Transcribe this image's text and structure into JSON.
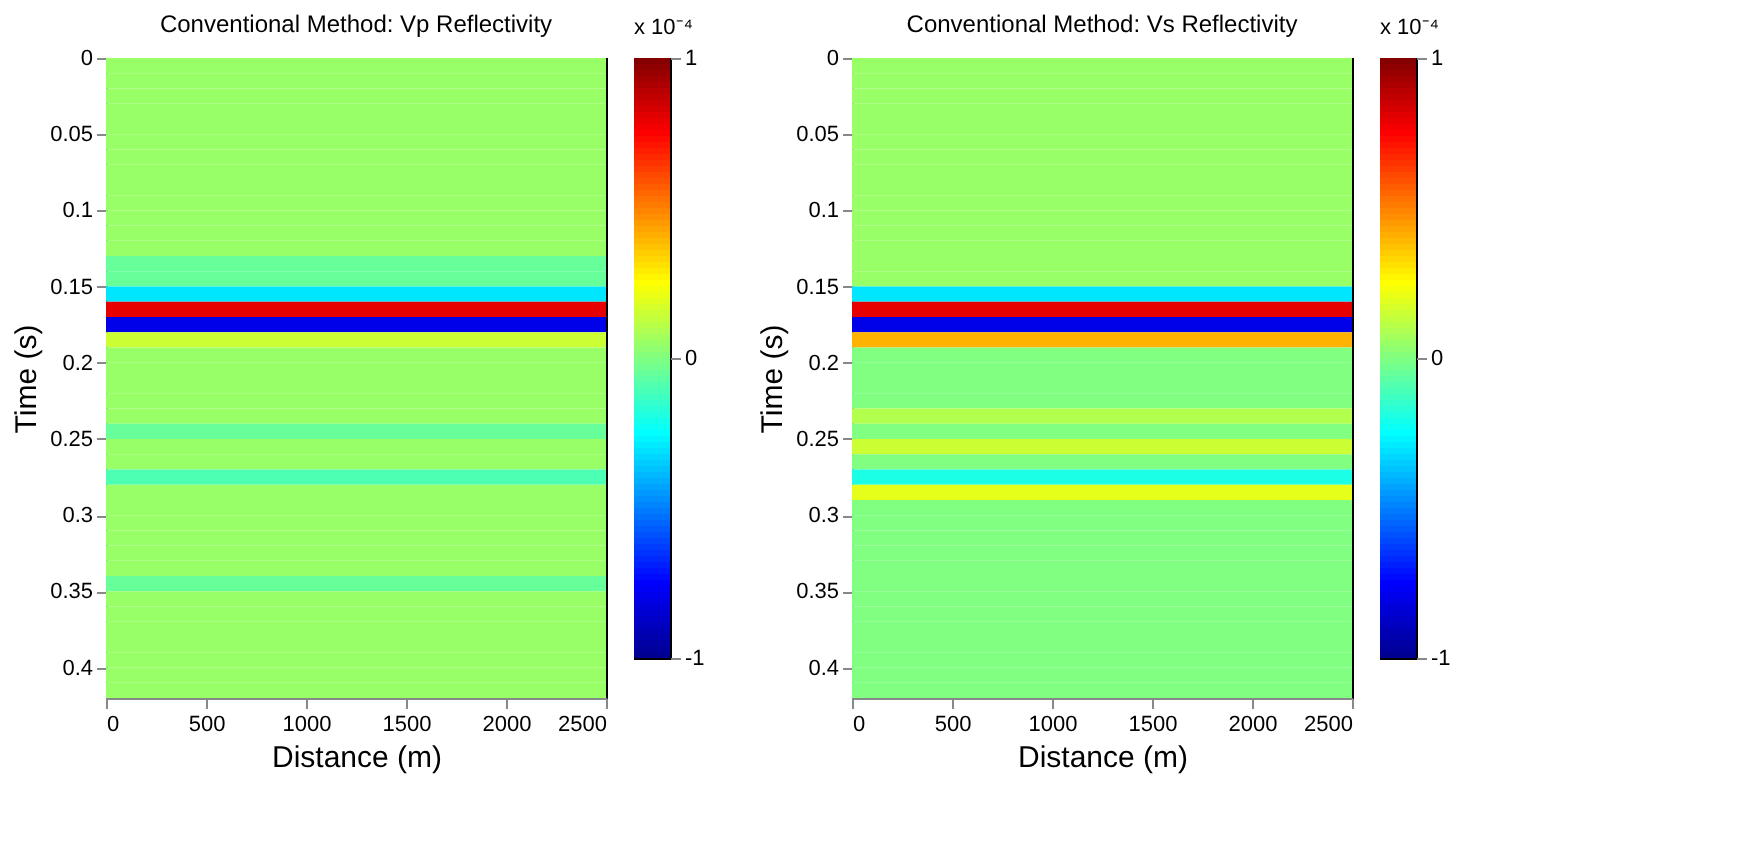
{
  "chart_data": [
    {
      "type": "heatmap",
      "title": "Conventional Method: Vp Reflectivity",
      "xlabel": "Distance (m)",
      "ylabel": "Time (s)",
      "clabel": "x 10⁻⁴",
      "xlim": [
        0,
        2500
      ],
      "xticks": [
        0,
        500,
        1000,
        1500,
        2000,
        2500
      ],
      "ylim": [
        0.42,
        0
      ],
      "yticks": [
        0,
        0.05,
        0.1,
        0.15,
        0.2,
        0.25,
        0.3,
        0.35,
        0.4
      ],
      "clim": [
        -1,
        1
      ],
      "cticks": [
        -1,
        0,
        1
      ],
      "cells": [
        [
          0.05
        ],
        [
          0.05
        ],
        [
          0.05
        ],
        [
          0.05
        ],
        [
          0.05
        ],
        [
          0.05
        ],
        [
          0.05
        ],
        [
          0.05
        ],
        [
          0.05
        ],
        [
          0.05
        ],
        [
          0.05
        ],
        [
          0.05
        ],
        [
          0.05
        ],
        [
          -0.05
        ],
        [
          -0.05
        ],
        [
          -0.3
        ],
        [
          0.8
        ],
        [
          -0.8
        ],
        [
          0.15
        ],
        [
          0.05
        ],
        [
          0.05
        ],
        [
          0.05
        ],
        [
          0.05
        ],
        [
          0.05
        ],
        [
          -0.05
        ],
        [
          0.05
        ],
        [
          0.05
        ],
        [
          -0.1
        ],
        [
          0.05
        ],
        [
          0.05
        ],
        [
          0.05
        ],
        [
          0.05
        ],
        [
          0.05
        ],
        [
          0.05
        ],
        [
          -0.05
        ],
        [
          0.05
        ],
        [
          0.05
        ],
        [
          0.05
        ],
        [
          0.05
        ],
        [
          0.05
        ],
        [
          0.05
        ],
        [
          0.05
        ]
      ]
    },
    {
      "type": "heatmap",
      "title": "Conventional Method: Vs Reflectivity",
      "xlabel": "Distance (m)",
      "ylabel": "Time (s)",
      "clabel": "x 10⁻⁴",
      "xlim": [
        0,
        2500
      ],
      "xticks": [
        0,
        500,
        1000,
        1500,
        2000,
        2500
      ],
      "ylim": [
        0.42,
        0
      ],
      "yticks": [
        0,
        0.05,
        0.1,
        0.15,
        0.2,
        0.25,
        0.3,
        0.35,
        0.4
      ],
      "clim": [
        -1,
        1
      ],
      "cticks": [
        -1,
        0,
        1
      ],
      "cells": [
        [
          0.05
        ],
        [
          0.05
        ],
        [
          0.05
        ],
        [
          0.05
        ],
        [
          0.05
        ],
        [
          0.05
        ],
        [
          0.05
        ],
        [
          0.05
        ],
        [
          0.05
        ],
        [
          0.05
        ],
        [
          0.05
        ],
        [
          0.05
        ],
        [
          0.05
        ],
        [
          0.05
        ],
        [
          0.05
        ],
        [
          -0.3
        ],
        [
          0.8
        ],
        [
          -0.8
        ],
        [
          0.4
        ],
        [
          0
        ],
        [
          0
        ],
        [
          0
        ],
        [
          0
        ],
        [
          0.1
        ],
        [
          0
        ],
        [
          0.15
        ],
        [
          0
        ],
        [
          -0.2
        ],
        [
          0.2
        ],
        [
          0
        ],
        [
          0
        ],
        [
          0
        ],
        [
          0
        ],
        [
          0
        ],
        [
          0
        ],
        [
          0
        ],
        [
          0
        ],
        [
          0
        ],
        [
          0
        ],
        [
          0
        ],
        [
          0
        ],
        [
          0
        ]
      ]
    }
  ]
}
